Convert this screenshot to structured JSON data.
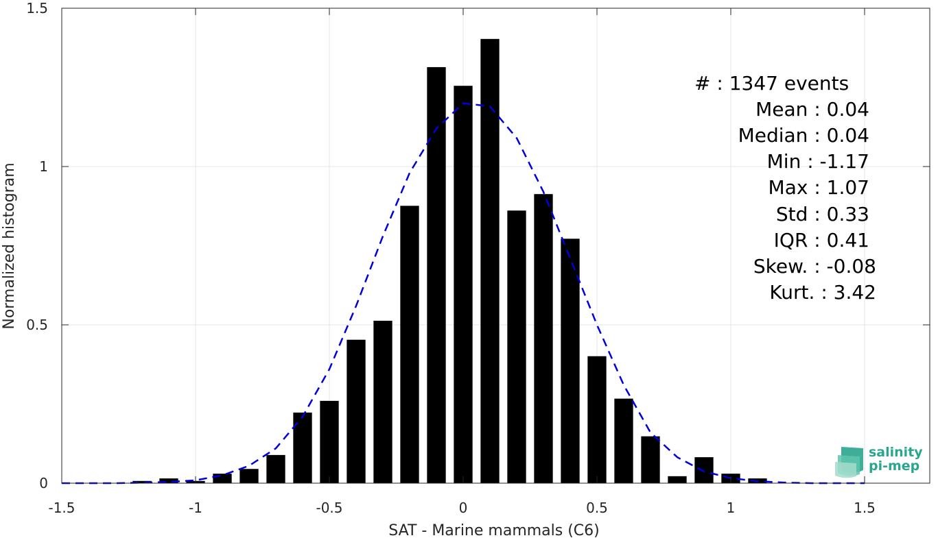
{
  "chart_data": {
    "type": "bar",
    "xlabel": "SAT - Marine mammals (C6)",
    "ylabel": "Normalized histogram",
    "xlim": [
      -1.5,
      1.5
    ],
    "ylim": [
      0,
      1.5
    ],
    "grid": true,
    "x_ticks": [
      -1.5,
      -1,
      -0.5,
      0,
      0.5,
      1,
      1.5
    ],
    "x_tick_labels": [
      "-1.5",
      "-1",
      "-0.5",
      "0",
      "0.5",
      "1",
      "1.5"
    ],
    "y_ticks": [
      0,
      0.5,
      1,
      1.5
    ],
    "y_tick_labels": [
      "0",
      "0.5",
      "1",
      "1.5"
    ],
    "bin_width": 0.1,
    "bar_width_fraction": 0.7,
    "bins": {
      "centers": [
        -1.2,
        -1.1,
        -1.0,
        -0.9,
        -0.8,
        -0.7,
        -0.6,
        -0.5,
        -0.4,
        -0.3,
        -0.2,
        -0.1,
        0.0,
        0.1,
        0.2,
        0.3,
        0.4,
        0.5,
        0.6,
        0.7,
        0.8,
        0.9,
        1.0,
        1.1
      ],
      "values": [
        0.007,
        0.015,
        0.007,
        0.03,
        0.045,
        0.089,
        0.223,
        0.26,
        0.453,
        0.513,
        0.876,
        1.314,
        1.255,
        1.403,
        0.861,
        0.913,
        0.772,
        0.401,
        0.267,
        0.148,
        0.022,
        0.082,
        0.03,
        0.015
      ]
    },
    "fit_curve": {
      "style": "dashed",
      "color": "#0000dd",
      "x": [
        -1.5,
        -1.4,
        -1.3,
        -1.2,
        -1.1,
        -1.0,
        -0.9,
        -0.8,
        -0.7,
        -0.6,
        -0.5,
        -0.4,
        -0.3,
        -0.2,
        -0.1,
        0.0,
        0.1,
        0.2,
        0.3,
        0.4,
        0.5,
        0.6,
        0.7,
        0.8,
        0.9,
        1.0,
        1.1,
        1.2,
        1.3,
        1.4,
        1.5
      ],
      "y": [
        0.0,
        0.0,
        0.0,
        0.0015,
        0.004,
        0.009,
        0.025,
        0.055,
        0.11,
        0.21,
        0.36,
        0.56,
        0.78,
        0.98,
        1.12,
        1.2,
        1.19,
        1.09,
        0.92,
        0.71,
        0.5,
        0.31,
        0.16,
        0.082,
        0.037,
        0.016,
        0.006,
        0.002,
        0.0,
        0.0,
        0.0
      ]
    },
    "stats": [
      "#  : 1347 events",
      "Mean : 0.04",
      "Median : 0.04",
      "Min : -1.17",
      "Max : 1.07",
      "Std : 0.33",
      "IQR : 0.41",
      "Skew. : -0.08",
      "Kurt. : 3.42"
    ],
    "logo": {
      "line1": "salinity",
      "line2": "pi-mep",
      "color": "#2aa58e"
    },
    "bar_color": "#000000",
    "grid_color": "#e6e6e6"
  }
}
